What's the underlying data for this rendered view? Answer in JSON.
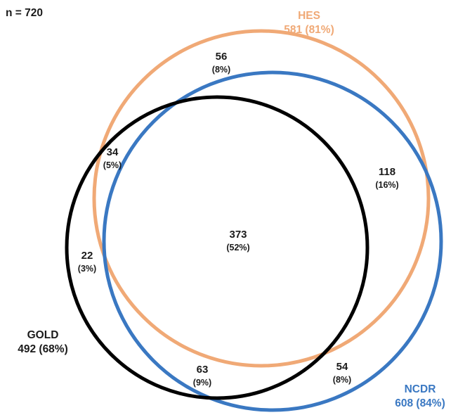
{
  "total_label": "n = 720",
  "sets": {
    "hes": {
      "name": "HES",
      "count": "581 (81%)",
      "color": "#f0a976"
    },
    "ncdr": {
      "name": "NCDR",
      "count": "608 (84%)",
      "color": "#3a78c2"
    },
    "gold": {
      "name": "GOLD",
      "count": "492 (68%)",
      "color": "#000000"
    }
  },
  "regions": {
    "hes_only": {
      "count": "56",
      "percent": "(8%)"
    },
    "gold_hes": {
      "count": "34",
      "percent": "(5%)"
    },
    "hes_ncdr": {
      "count": "118",
      "percent": "(16%)"
    },
    "all_three": {
      "count": "373",
      "percent": "(52%)"
    },
    "gold_only": {
      "count": "22",
      "percent": "(3%)"
    },
    "gold_ncdr": {
      "count": "63",
      "percent": "(9%)"
    },
    "ncdr_only": {
      "count": "54",
      "percent": "(8%)"
    }
  }
}
